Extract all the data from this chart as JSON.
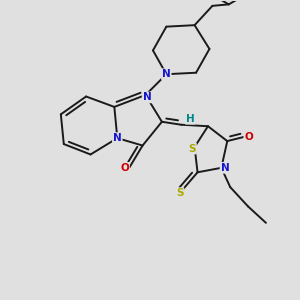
{
  "background": "#e0e0e0",
  "bond_color": "#1a1a1a",
  "bond_width": 1.4,
  "atom_colors": {
    "N": "#1515cc",
    "S": "#aaaa00",
    "O": "#cc0000",
    "H": "#008888"
  },
  "figsize": [
    3.0,
    3.0
  ],
  "dpi": 100,
  "xlim": [
    0,
    10
  ],
  "ylim": [
    0,
    10
  ]
}
